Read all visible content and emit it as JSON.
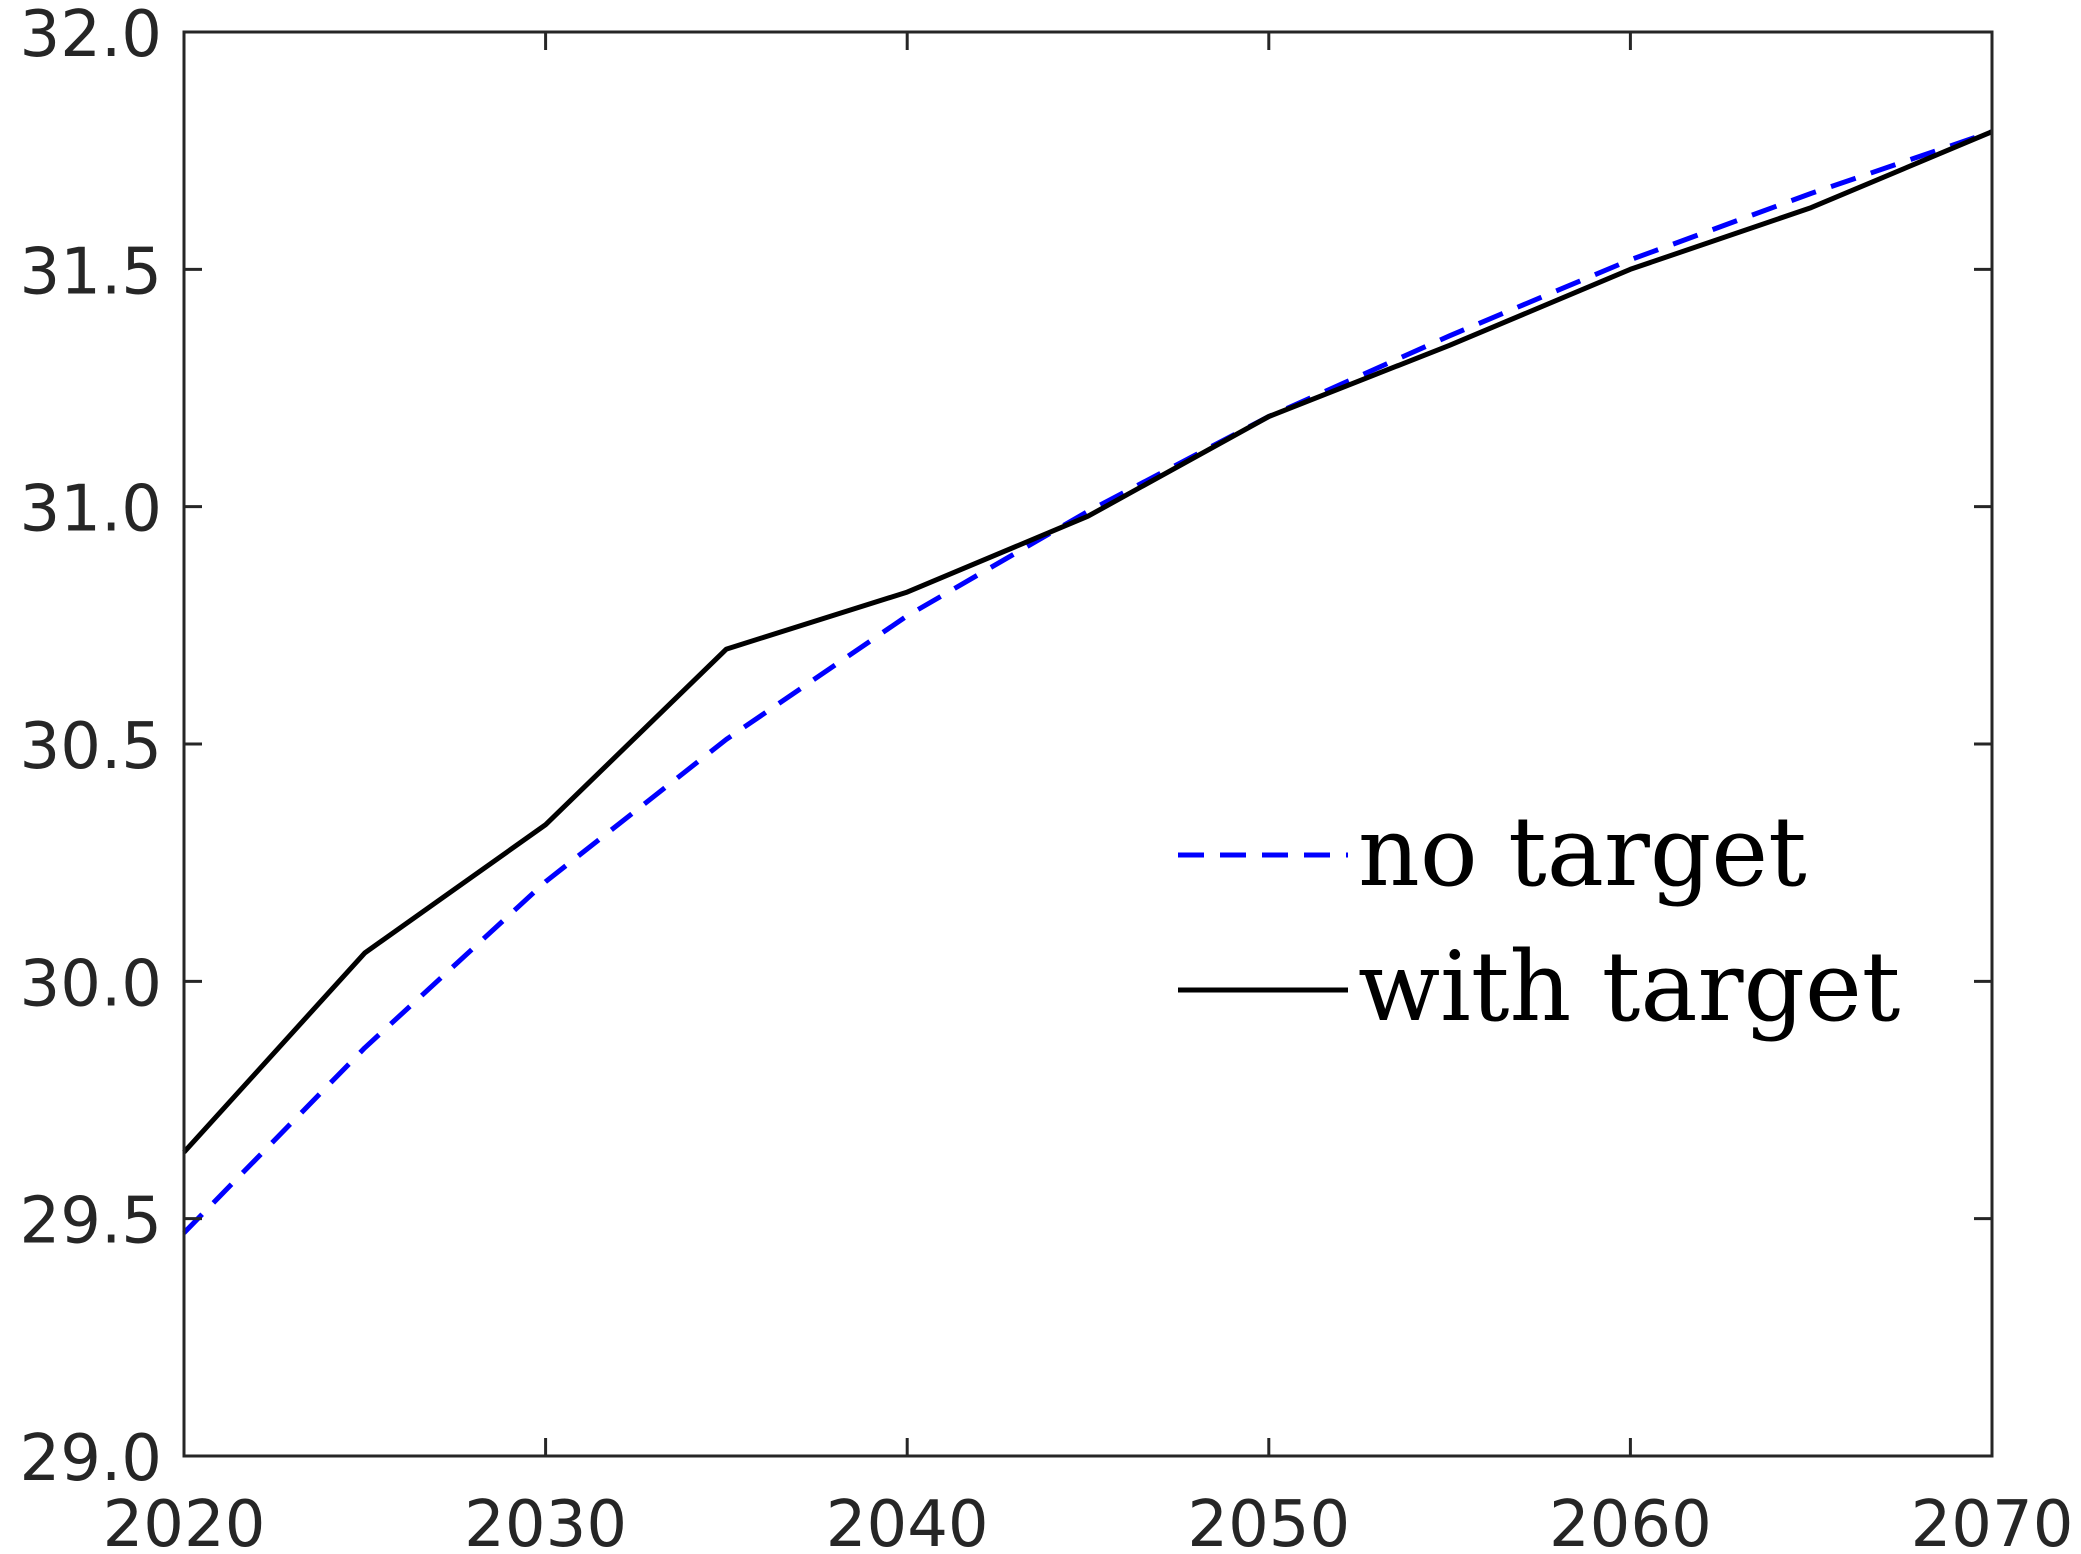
{
  "chart_data": {
    "type": "line",
    "title": "",
    "xlabel": "",
    "ylabel": "",
    "xlim": [
      2020,
      2070
    ],
    "ylim": [
      29.0,
      32.0
    ],
    "xticks": [
      2020,
      2030,
      2040,
      2050,
      2060,
      2070
    ],
    "xtick_labels": [
      "2020",
      "2030",
      "2040",
      "2050",
      "2060",
      "2070"
    ],
    "yticks": [
      29.0,
      29.5,
      30.0,
      30.5,
      31.0,
      31.5,
      32.0
    ],
    "ytick_labels": [
      "29.0",
      "29.5",
      "30.0",
      "30.5",
      "31.0",
      "31.5",
      "32.0"
    ],
    "grid": false,
    "legend_position": "center-right",
    "x": [
      2020,
      2025,
      2030,
      2035,
      2040,
      2045,
      2050,
      2055,
      2060,
      2065,
      2070
    ],
    "series": [
      {
        "name": "no target",
        "color": "#0000ff",
        "style": "dashed",
        "values": [
          29.47,
          29.86,
          30.21,
          30.51,
          30.77,
          30.99,
          31.19,
          31.36,
          31.52,
          31.66,
          31.79
        ]
      },
      {
        "name": "with target",
        "color": "#000000",
        "style": "solid",
        "values": [
          29.64,
          30.06,
          30.33,
          30.7,
          30.82,
          30.98,
          31.19,
          31.34,
          31.5,
          31.63,
          31.79
        ]
      }
    ]
  }
}
